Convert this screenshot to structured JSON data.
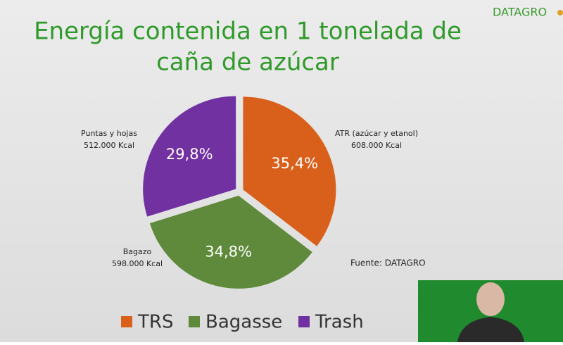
{
  "logo": "DATAGRO",
  "chart_data": {
    "type": "pie",
    "title": [
      "Energía contenida en 1 tonelada de",
      "caña de azúcar"
    ],
    "categories": [
      "TRS",
      "Bagasse",
      "Trash"
    ],
    "series": [
      {
        "name": "TRS",
        "color": "#d9601a"
      },
      {
        "name": "Bagasse",
        "color": "#5f8a3b"
      },
      {
        "name": "Trash",
        "color": "#7131a1"
      }
    ],
    "values": [
      35.4,
      34.8,
      29.8
    ],
    "value_labels": [
      "35,4%",
      "34,8%",
      "29,8%"
    ],
    "slice_names": [
      "ATR (azúcar y etanol)",
      "Bagazo",
      "Puntas y hojas"
    ],
    "slice_energy": [
      "608.000 Kcal",
      "598.000 Kcal",
      "512.000 Kcal"
    ],
    "source": "Fuente: DATAGRO",
    "legend": "bottom"
  }
}
